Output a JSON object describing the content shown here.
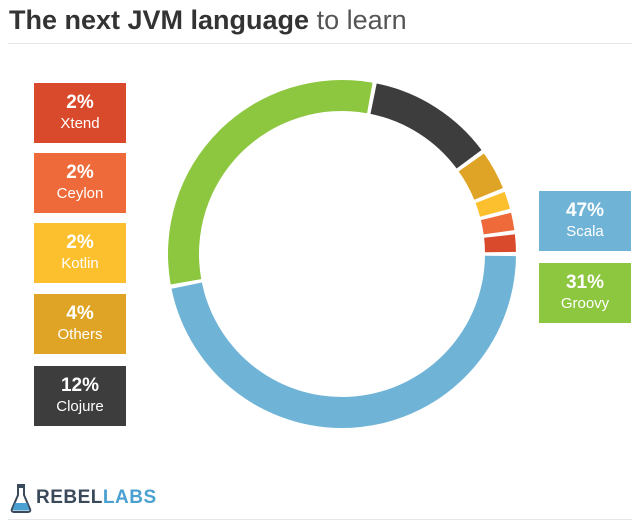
{
  "header": {
    "title_bold": "The next JVM language",
    "title_light": "to learn"
  },
  "chart_data": {
    "type": "pie",
    "categories": [
      "Scala",
      "Groovy",
      "Clojure",
      "Others",
      "Kotlin",
      "Ceylon",
      "Xtend"
    ],
    "values": [
      47,
      31,
      12,
      4,
      2,
      2,
      2
    ],
    "labels": [
      "47%",
      "31%",
      "12%",
      "4%",
      "2%",
      "2%",
      "2%"
    ],
    "colors": [
      "#6fb3d6",
      "#8dc63f",
      "#3d3d3d",
      "#dfa425",
      "#fcc02e",
      "#ef6a3a",
      "#d9492b"
    ],
    "legend": [
      "left",
      "right"
    ]
  },
  "logo": {
    "icon": "flask-icon",
    "word_rebel": "REBEL",
    "word_labs": "LABS"
  }
}
